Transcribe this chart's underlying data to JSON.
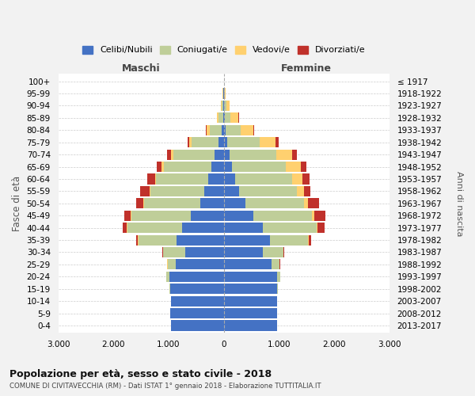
{
  "age_groups": [
    "0-4",
    "5-9",
    "10-14",
    "15-19",
    "20-24",
    "25-29",
    "30-34",
    "35-39",
    "40-44",
    "45-49",
    "50-54",
    "55-59",
    "60-64",
    "65-69",
    "70-74",
    "75-79",
    "80-84",
    "85-89",
    "90-94",
    "95-99",
    "100+"
  ],
  "birth_years": [
    "2013-2017",
    "2008-2012",
    "2003-2007",
    "1998-2002",
    "1993-1997",
    "1988-1992",
    "1983-1987",
    "1978-1982",
    "1973-1977",
    "1968-1972",
    "1963-1967",
    "1958-1962",
    "1953-1957",
    "1948-1952",
    "1943-1947",
    "1938-1942",
    "1933-1937",
    "1928-1932",
    "1923-1927",
    "1918-1922",
    "≤ 1917"
  ],
  "males": {
    "celibi": [
      960,
      970,
      960,
      970,
      980,
      870,
      700,
      850,
      750,
      600,
      430,
      350,
      280,
      220,
      170,
      90,
      40,
      15,
      10,
      5,
      0
    ],
    "coniugati": [
      0,
      0,
      0,
      10,
      60,
      150,
      400,
      700,
      1000,
      1080,
      1020,
      980,
      950,
      870,
      740,
      490,
      220,
      80,
      30,
      10,
      0
    ],
    "vedovi": [
      0,
      0,
      0,
      0,
      5,
      5,
      0,
      5,
      5,
      5,
      5,
      10,
      20,
      40,
      50,
      50,
      50,
      30,
      10,
      5,
      0
    ],
    "divorziati": [
      0,
      0,
      0,
      0,
      0,
      5,
      10,
      30,
      80,
      120,
      130,
      170,
      130,
      90,
      70,
      30,
      10,
      5,
      0,
      0,
      0
    ]
  },
  "females": {
    "nubili": [
      960,
      960,
      960,
      970,
      970,
      870,
      700,
      830,
      700,
      540,
      390,
      270,
      200,
      150,
      100,
      60,
      30,
      20,
      10,
      5,
      0
    ],
    "coniugate": [
      0,
      0,
      0,
      10,
      50,
      140,
      380,
      690,
      980,
      1060,
      1070,
      1060,
      1040,
      980,
      850,
      590,
      270,
      100,
      35,
      10,
      0
    ],
    "vedove": [
      0,
      0,
      0,
      0,
      0,
      5,
      5,
      15,
      20,
      40,
      70,
      120,
      180,
      270,
      290,
      290,
      230,
      140,
      60,
      25,
      5
    ],
    "divorziate": [
      0,
      0,
      0,
      0,
      5,
      5,
      10,
      40,
      120,
      200,
      200,
      120,
      130,
      100,
      80,
      50,
      20,
      10,
      5,
      0,
      0
    ]
  },
  "colors": {
    "celibi": "#4472C4",
    "coniugati": "#BFCE99",
    "vedovi": "#FFD06F",
    "divorziati": "#C0312B"
  },
  "xlim": 3000,
  "title": "Popolazione per età, sesso e stato civile - 2018",
  "subtitle": "COMUNE DI CIVITAVECCHIA (RM) - Dati ISTAT 1° gennaio 2018 - Elaborazione TUTTITALIA.IT",
  "ylabel": "Fasce di età",
  "ylabel_right": "Anni di nascita",
  "xlabel_left": "Maschi",
  "xlabel_right": "Femmine",
  "legend_labels": [
    "Celibi/Nubili",
    "Coniugati/e",
    "Vedovi/e",
    "Divorziati/e"
  ],
  "bg_color": "#F2F2F2",
  "plot_bg_color": "#FFFFFF"
}
